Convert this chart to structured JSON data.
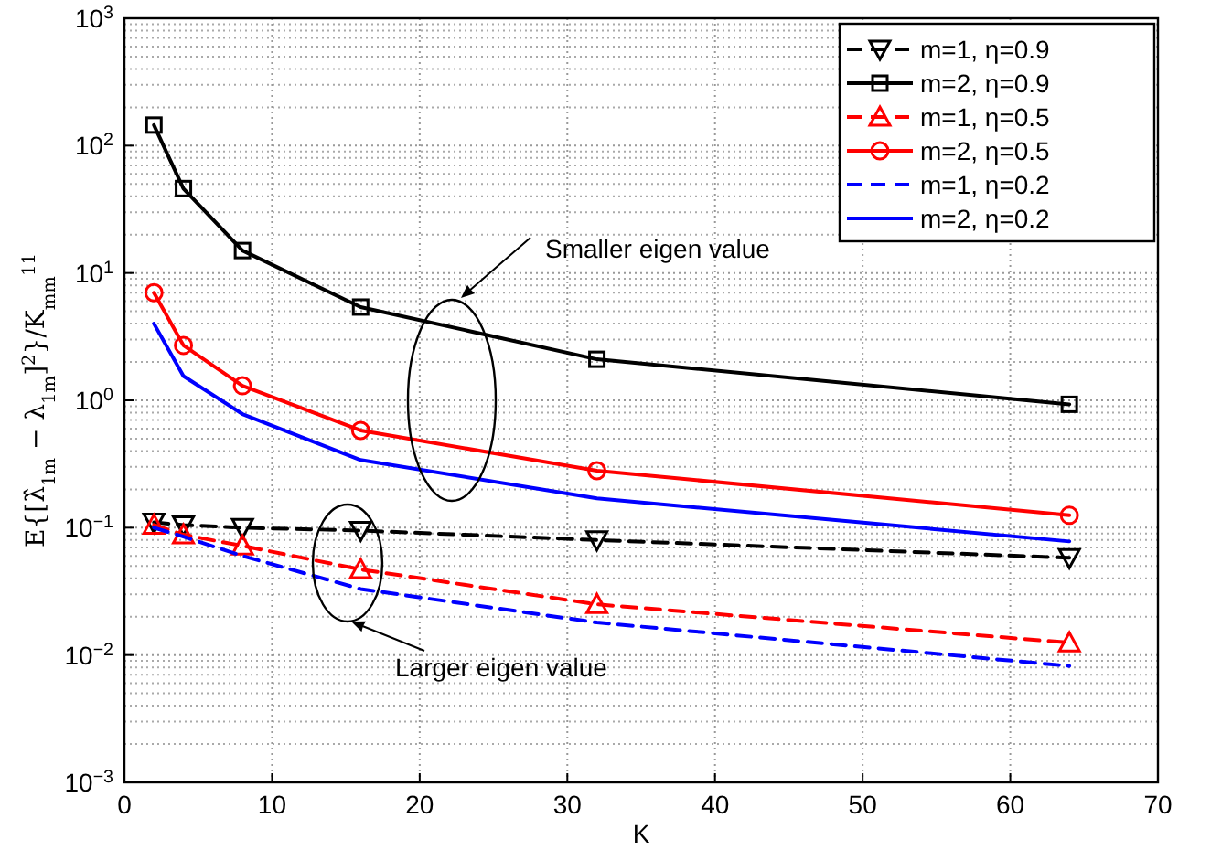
{
  "chart_data": {
    "type": "line",
    "xlabel": "K",
    "ylabel": "E{[λ̂$_{1m}$ − λ$_{1m}$]$^{2}$}/K$_{mm}$$^{11}$",
    "xlim": [
      0,
      70
    ],
    "xticks": [
      0,
      10,
      20,
      30,
      40,
      50,
      60,
      70
    ],
    "ylim": [
      0.001,
      1000
    ],
    "log": true,
    "yticks": [
      {
        "value": 0.001,
        "label": "10$^{−3}$"
      },
      {
        "value": 0.01,
        "label": "10$^{−2}$"
      },
      {
        "value": 0.1,
        "label": "10$^{−1}$"
      },
      {
        "value": 1,
        "label": "10$^{0}$"
      },
      {
        "value": 10,
        "label": "10$^{1}$"
      },
      {
        "value": 100,
        "label": "10$^{2}$"
      },
      {
        "value": 1000,
        "label": "10$^{3}$"
      }
    ],
    "grid": true,
    "legend": "top right",
    "x": [
      2,
      4,
      8,
      16,
      32,
      64
    ],
    "series": [
      {
        "name": "m=1, η=0.9",
        "color": "#000000",
        "marker": "triangle-down",
        "line_style": "dashed",
        "values": [
          0.11,
          0.105,
          0.1,
          0.095,
          0.08,
          0.058
        ]
      },
      {
        "name": "m=2, η=0.9",
        "color": "#000000",
        "marker": "square",
        "line_style": "solid",
        "values": [
          145,
          46,
          15,
          5.4,
          2.1,
          0.93
        ]
      },
      {
        "name": "m=1, η=0.5",
        "color": "#ff0000",
        "marker": "triangle",
        "line_style": "dashed",
        "values": [
          0.105,
          0.088,
          0.072,
          0.047,
          0.025,
          0.0125
        ]
      },
      {
        "name": "m=2, η=0.5",
        "color": "#ff0000",
        "marker": "circle",
        "line_style": "solid",
        "values": [
          7,
          2.7,
          1.3,
          0.58,
          0.28,
          0.125
        ]
      },
      {
        "name": "m=1, η=0.2",
        "color": "#0000ff",
        "marker": "none",
        "line_style": "dashed",
        "values": [
          0.1,
          0.085,
          0.06,
          0.033,
          0.018,
          0.0082
        ]
      },
      {
        "name": "m=2, η=0.2",
        "color": "#0000ff",
        "marker": "none",
        "line_style": "solid",
        "values": [
          4,
          1.55,
          0.78,
          0.34,
          0.17,
          0.078
        ]
      }
    ],
    "annotations": [
      "Smaller eigen value",
      "Larger eigen value"
    ]
  }
}
